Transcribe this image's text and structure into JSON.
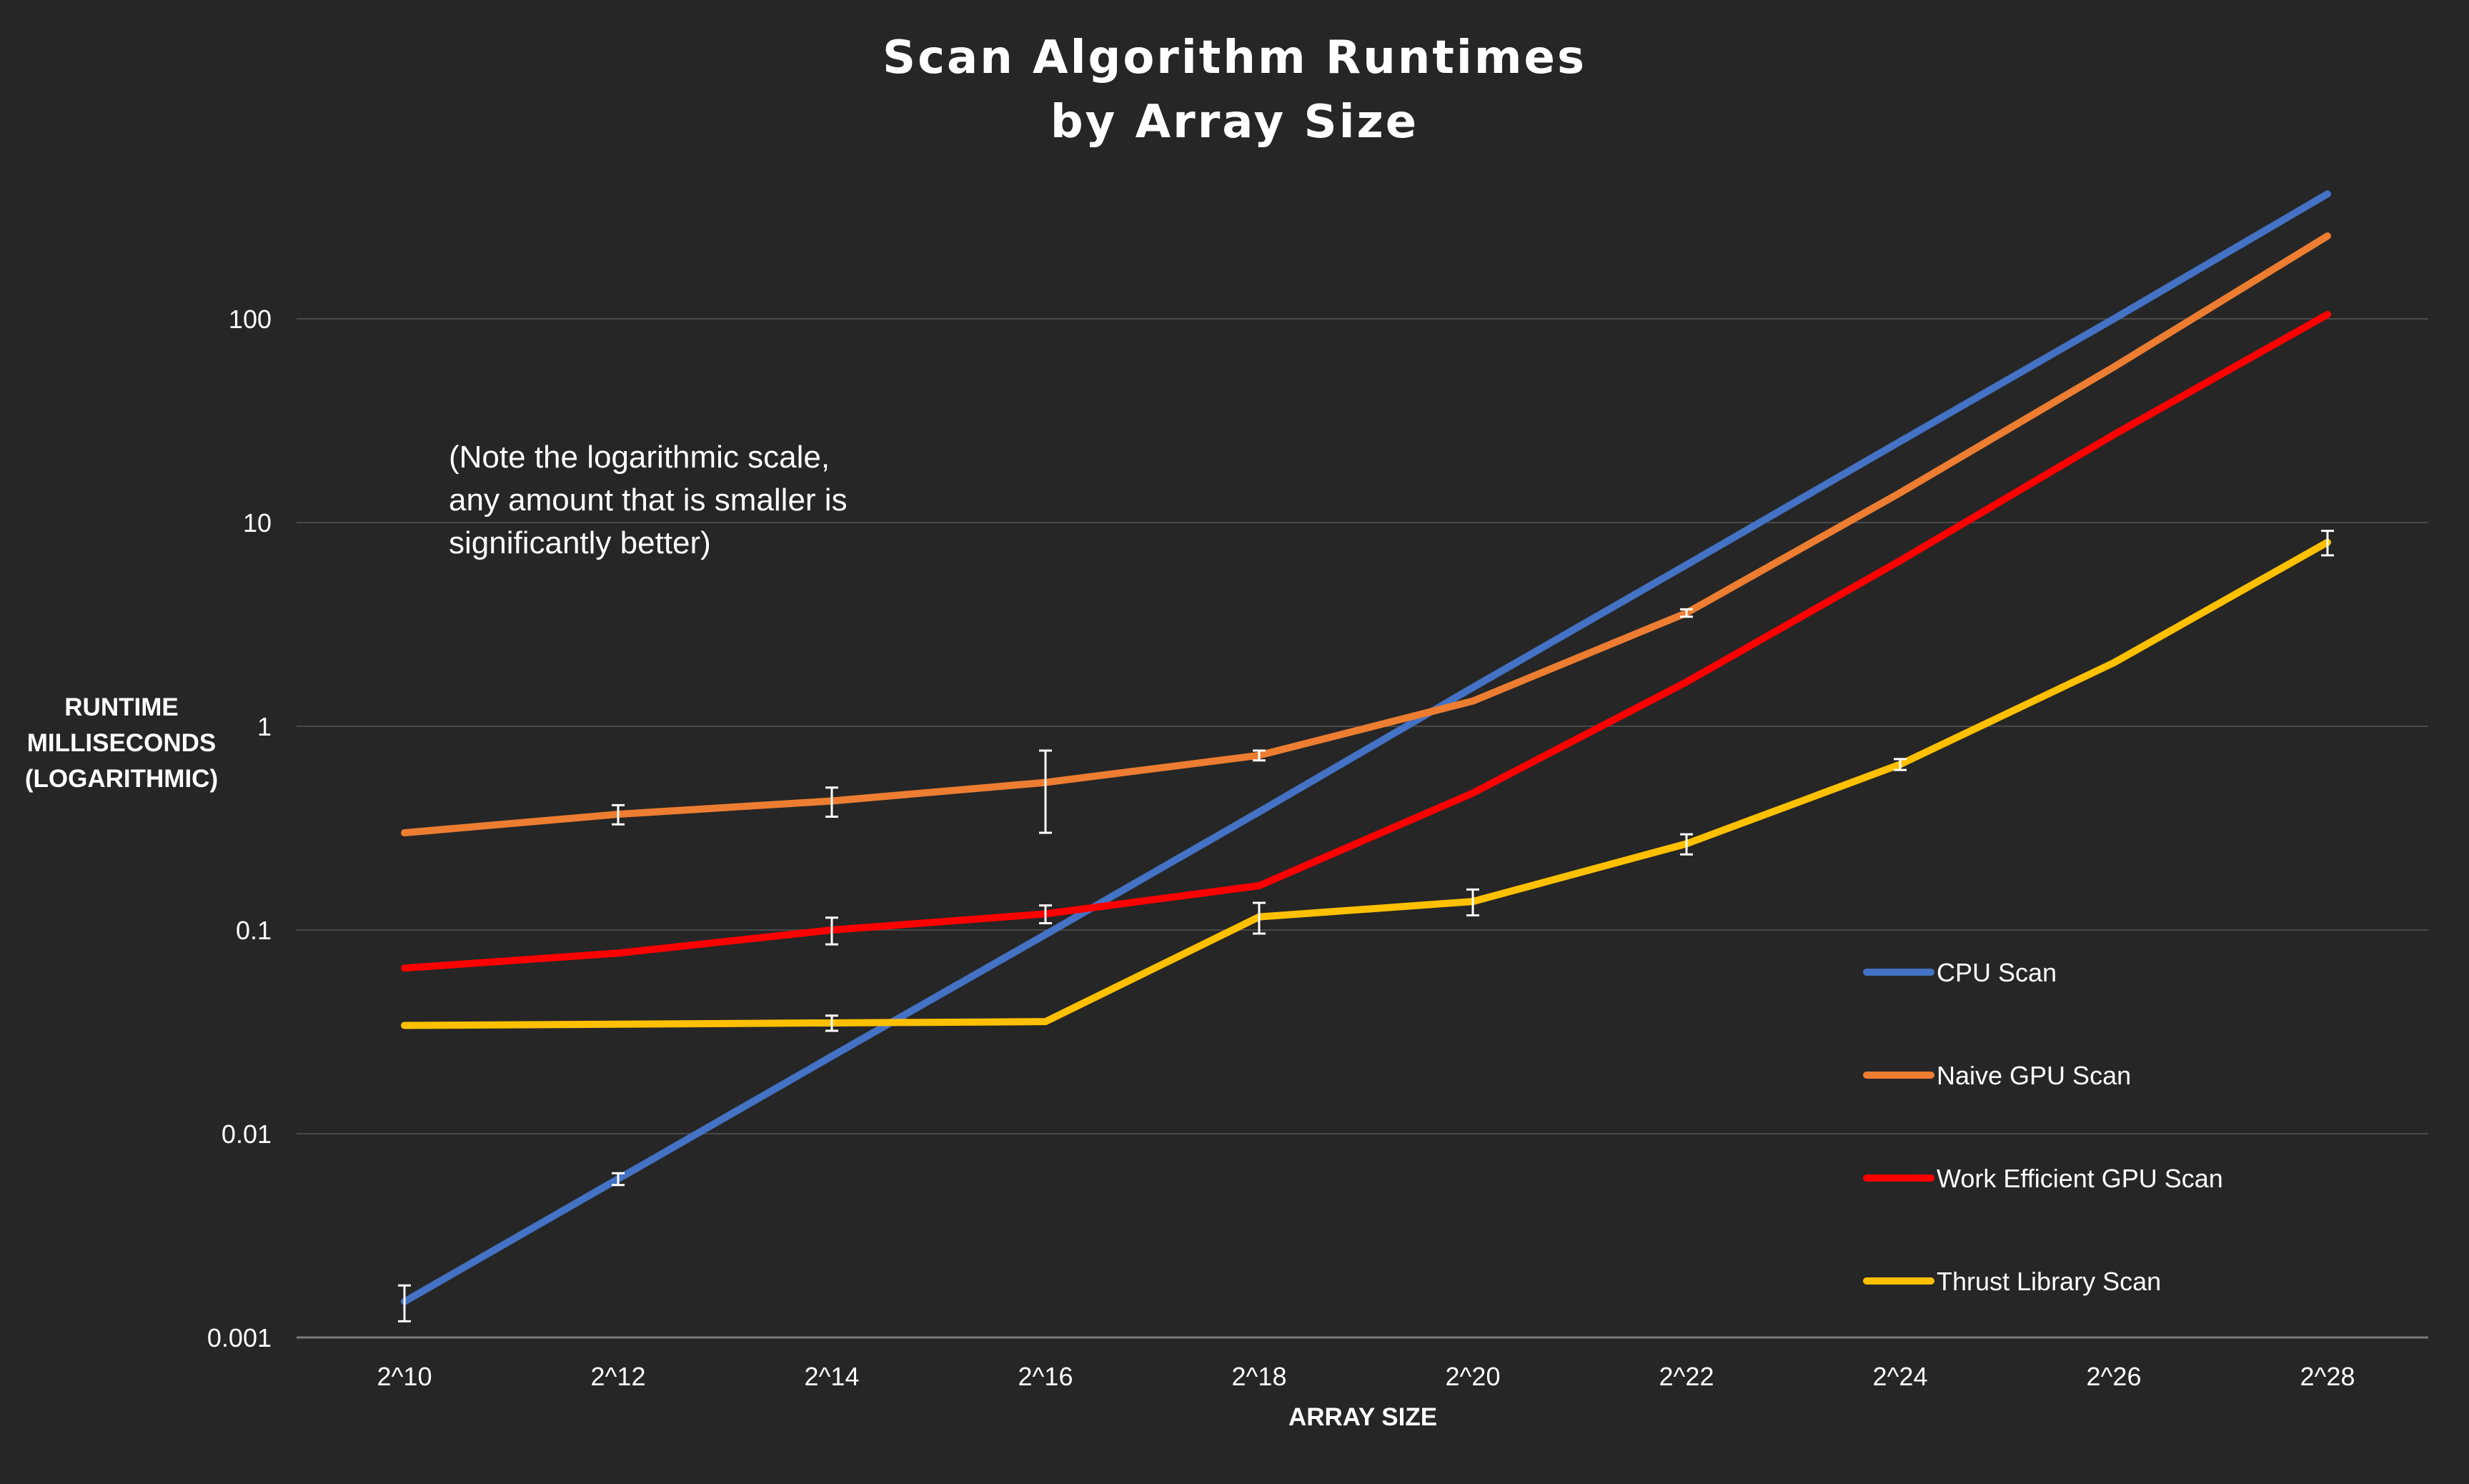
{
  "chart_data": {
    "type": "line",
    "title": [
      "Scan Algorithm Runtimes",
      "by Array Size"
    ],
    "annotation": [
      "(Note the logarithmic scale,",
      "any amount that is smaller is",
      "significantly better)"
    ],
    "xlabel": "ARRAY SIZE",
    "ylabel": [
      "RUNTIME",
      "MILLISECONDS",
      "(LOGARITHMIC)"
    ],
    "y_scale": "log",
    "ylim": [
      0.001,
      1000
    ],
    "y_ticks": [
      "0.001",
      "0.01",
      "0.1",
      "1",
      "10",
      "100"
    ],
    "y_tick_values": [
      0.001,
      0.01,
      0.1,
      1,
      10,
      100
    ],
    "grid": true,
    "legend_position": "bottom-right",
    "categories": [
      "2^10",
      "2^12",
      "2^14",
      "2^16",
      "2^18",
      "2^20",
      "2^22",
      "2^24",
      "2^26",
      "2^28"
    ],
    "series": [
      {
        "name": "CPU Scan",
        "color": "#4472C4",
        "values": [
          0.0015,
          0.006,
          0.024,
          0.095,
          0.38,
          1.55,
          6.2,
          25,
          100,
          410
        ],
        "error": [
          0.0003,
          0.0004,
          0,
          0,
          0,
          0,
          0,
          0,
          0,
          0
        ]
      },
      {
        "name": "Naive GPU Scan",
        "color": "#ED7D31",
        "values": [
          0.3,
          0.37,
          0.43,
          0.53,
          0.72,
          1.33,
          3.6,
          14,
          58,
          255
        ],
        "error": [
          0,
          0.04,
          0.07,
          0.23,
          0.04,
          0,
          0.15,
          0,
          0,
          0
        ]
      },
      {
        "name": "Work Efficient GPU Scan",
        "color": "#FF0000",
        "values": [
          0.065,
          0.077,
          0.1,
          0.12,
          0.165,
          0.47,
          1.65,
          6.5,
          27,
          105
        ],
        "error": [
          0,
          0,
          0.015,
          0.012,
          0,
          0,
          0,
          0,
          0,
          0
        ]
      },
      {
        "name": "Thrust Library Scan",
        "color": "#FFC000",
        "values": [
          0.034,
          0.0345,
          0.035,
          0.0355,
          0.116,
          0.138,
          0.265,
          0.65,
          2.05,
          8.0
        ],
        "error": [
          0,
          0,
          0.003,
          0,
          0.02,
          0.02,
          0.03,
          0.04,
          0,
          1.1
        ]
      }
    ]
  }
}
